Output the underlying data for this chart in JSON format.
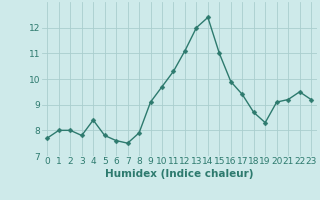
{
  "x": [
    0,
    1,
    2,
    3,
    4,
    5,
    6,
    7,
    8,
    9,
    10,
    11,
    12,
    13,
    14,
    15,
    16,
    17,
    18,
    19,
    20,
    21,
    22,
    23
  ],
  "y": [
    7.7,
    8.0,
    8.0,
    7.8,
    8.4,
    7.8,
    7.6,
    7.5,
    7.9,
    9.1,
    9.7,
    10.3,
    11.1,
    12.0,
    12.4,
    11.0,
    9.9,
    9.4,
    8.7,
    8.3,
    9.1,
    9.2,
    9.5,
    9.2
  ],
  "line_color": "#2d7a6e",
  "marker": "D",
  "marker_size": 2.5,
  "line_width": 1.0,
  "bg_color": "#ceeaea",
  "grid_color": "#aacece",
  "xlabel": "Humidex (Indice chaleur)",
  "xlabel_fontsize": 7.5,
  "tick_fontsize": 6.5,
  "ylim": [
    7,
    13
  ],
  "yticks": [
    7,
    8,
    9,
    10,
    11,
    12
  ],
  "xlim": [
    -0.5,
    23.5
  ],
  "xticks": [
    0,
    1,
    2,
    3,
    4,
    5,
    6,
    7,
    8,
    9,
    10,
    11,
    12,
    13,
    14,
    15,
    16,
    17,
    18,
    19,
    20,
    21,
    22,
    23
  ]
}
